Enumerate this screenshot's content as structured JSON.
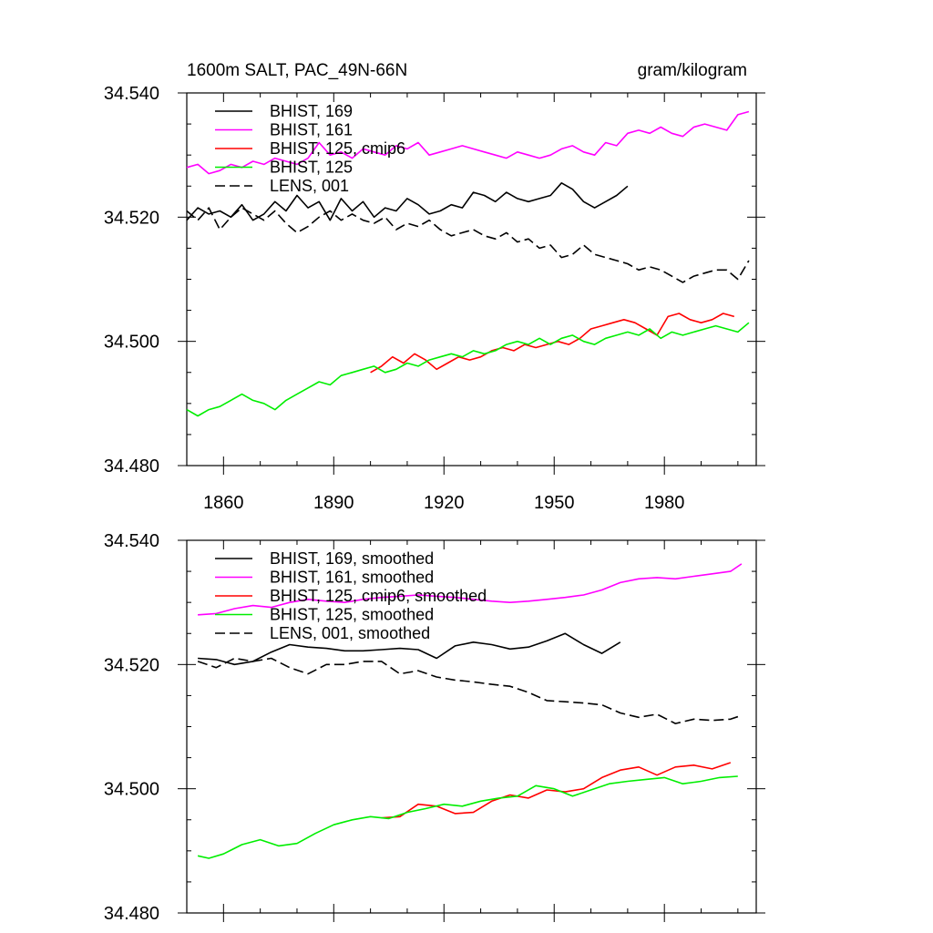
{
  "header": {
    "left_title": "1600m SALT, PAC_49N-66N",
    "right_units": "gram/kilogram"
  },
  "chart_data": [
    {
      "type": "line",
      "xlim": [
        1850,
        2005
      ],
      "ylim": [
        34.48,
        34.54
      ],
      "yticks": [
        "34.480",
        "34.500",
        "34.520",
        "34.540"
      ],
      "xticks": [
        "1860",
        "1890",
        "1920",
        "1950",
        "1980"
      ],
      "legend_position": "top-left",
      "series": [
        {
          "name": "BHIST, 169",
          "color": "#000000",
          "dash": "solid",
          "x": [
            1850,
            1853,
            1856,
            1859,
            1862,
            1865,
            1868,
            1871,
            1874,
            1877,
            1880,
            1883,
            1886,
            1889,
            1892,
            1895,
            1898,
            1901,
            1904,
            1907,
            1910,
            1913,
            1916,
            1919,
            1922,
            1925,
            1928,
            1931,
            1934,
            1937,
            1940,
            1943,
            1946,
            1949,
            1952,
            1955,
            1958,
            1961,
            1964,
            1967,
            1970
          ],
          "y": [
            34.5195,
            34.5215,
            34.5205,
            34.521,
            34.52,
            34.522,
            34.5195,
            34.5205,
            34.5225,
            34.521,
            34.5235,
            34.5215,
            34.5225,
            34.5195,
            34.523,
            34.521,
            34.5225,
            34.52,
            34.5215,
            34.521,
            34.523,
            34.522,
            34.5205,
            34.521,
            34.522,
            34.5215,
            34.524,
            34.5235,
            34.5225,
            34.524,
            34.523,
            34.5225,
            34.523,
            34.5235,
            34.5255,
            34.5245,
            34.5225,
            34.5215,
            34.5225,
            34.5235,
            34.525
          ]
        },
        {
          "name": "BHIST, 161",
          "color": "#ff00ff",
          "dash": "solid",
          "x": [
            1850,
            1853,
            1856,
            1859,
            1862,
            1865,
            1868,
            1871,
            1874,
            1877,
            1880,
            1883,
            1886,
            1889,
            1892,
            1895,
            1898,
            1901,
            1904,
            1907,
            1910,
            1913,
            1916,
            1919,
            1922,
            1925,
            1928,
            1931,
            1934,
            1937,
            1940,
            1943,
            1946,
            1949,
            1952,
            1955,
            1958,
            1961,
            1964,
            1967,
            1970,
            1973,
            1976,
            1979,
            1982,
            1985,
            1988,
            1991,
            1994,
            1997,
            2000,
            2003
          ],
          "y": [
            34.528,
            34.5285,
            34.527,
            34.5275,
            34.5285,
            34.528,
            34.529,
            34.5285,
            34.5295,
            34.529,
            34.5285,
            34.5295,
            34.532,
            34.53,
            34.5305,
            34.5295,
            34.531,
            34.5305,
            34.53,
            34.5315,
            34.531,
            34.532,
            34.53,
            34.5305,
            34.531,
            34.5315,
            34.531,
            34.5305,
            34.53,
            34.5295,
            34.5305,
            34.53,
            34.5295,
            34.53,
            34.531,
            34.5315,
            34.5305,
            34.53,
            34.532,
            34.5315,
            34.5335,
            34.534,
            34.5335,
            34.5345,
            34.5335,
            34.533,
            34.5345,
            34.535,
            34.5345,
            34.534,
            34.5365,
            34.537
          ]
        },
        {
          "name": "BHIST, 125, cmip6",
          "color": "#ff0000",
          "dash": "solid",
          "x": [
            1900,
            1903,
            1906,
            1909,
            1912,
            1915,
            1918,
            1921,
            1924,
            1927,
            1930,
            1933,
            1936,
            1939,
            1942,
            1945,
            1948,
            1951,
            1954,
            1957,
            1960,
            1963,
            1966,
            1969,
            1972,
            1975,
            1978,
            1981,
            1984,
            1987,
            1990,
            1993,
            1996,
            1999
          ],
          "y": [
            34.495,
            34.496,
            34.4975,
            34.4965,
            34.498,
            34.497,
            34.4955,
            34.4965,
            34.4975,
            34.497,
            34.4975,
            34.4985,
            34.499,
            34.4985,
            34.4995,
            34.499,
            34.4995,
            34.5,
            34.4995,
            34.5005,
            34.502,
            34.5025,
            34.503,
            34.5035,
            34.503,
            34.502,
            34.501,
            34.504,
            34.5045,
            34.5035,
            34.503,
            34.5035,
            34.5045,
            34.504
          ]
        },
        {
          "name": "BHIST, 125",
          "color": "#00ee00",
          "dash": "solid",
          "x": [
            1850,
            1853,
            1856,
            1859,
            1862,
            1865,
            1868,
            1871,
            1874,
            1877,
            1880,
            1883,
            1886,
            1889,
            1892,
            1895,
            1898,
            1901,
            1904,
            1907,
            1910,
            1913,
            1916,
            1919,
            1922,
            1925,
            1928,
            1931,
            1934,
            1937,
            1940,
            1943,
            1946,
            1949,
            1952,
            1955,
            1958,
            1961,
            1964,
            1967,
            1970,
            1973,
            1976,
            1979,
            1982,
            1985,
            1988,
            1991,
            1994,
            1997,
            2000,
            2003
          ],
          "y": [
            34.489,
            34.488,
            34.489,
            34.4895,
            34.4905,
            34.4915,
            34.4905,
            34.49,
            34.489,
            34.4905,
            34.4915,
            34.4925,
            34.4935,
            34.493,
            34.4945,
            34.495,
            34.4955,
            34.496,
            34.495,
            34.4955,
            34.4965,
            34.496,
            34.497,
            34.4975,
            34.498,
            34.4975,
            34.4985,
            34.498,
            34.4985,
            34.4995,
            34.5,
            34.4995,
            34.5005,
            34.4995,
            34.5005,
            34.501,
            34.5,
            34.4995,
            34.5005,
            34.501,
            34.5015,
            34.501,
            34.502,
            34.5005,
            34.5015,
            34.501,
            34.5015,
            34.502,
            34.5025,
            34.502,
            34.5015,
            34.503
          ]
        },
        {
          "name": "LENS, 001",
          "color": "#000000",
          "dash": "dashed",
          "x": [
            1850,
            1853,
            1856,
            1859,
            1862,
            1865,
            1868,
            1871,
            1874,
            1877,
            1880,
            1883,
            1886,
            1889,
            1892,
            1895,
            1898,
            1901,
            1904,
            1907,
            1910,
            1913,
            1916,
            1919,
            1922,
            1925,
            1928,
            1931,
            1934,
            1937,
            1940,
            1943,
            1946,
            1949,
            1952,
            1955,
            1958,
            1961,
            1964,
            1967,
            1970,
            1973,
            1976,
            1979,
            1982,
            1985,
            1988,
            1991,
            1994,
            1997,
            2000,
            2003
          ],
          "y": [
            34.521,
            34.5195,
            34.5215,
            34.518,
            34.52,
            34.5215,
            34.5205,
            34.5195,
            34.521,
            34.519,
            34.5175,
            34.5185,
            34.52,
            34.521,
            34.5195,
            34.5205,
            34.5195,
            34.519,
            34.52,
            34.518,
            34.519,
            34.5185,
            34.5195,
            34.518,
            34.517,
            34.5175,
            34.518,
            34.517,
            34.5165,
            34.5175,
            34.516,
            34.5165,
            34.515,
            34.5155,
            34.5135,
            34.514,
            34.5155,
            34.514,
            34.5135,
            34.513,
            34.5125,
            34.5115,
            34.512,
            34.5115,
            34.5105,
            34.5095,
            34.5105,
            34.511,
            34.5115,
            34.5115,
            34.51,
            34.513
          ]
        }
      ]
    },
    {
      "type": "line",
      "xlim": [
        1850,
        2005
      ],
      "ylim": [
        34.48,
        34.54
      ],
      "yticks": [
        "34.480",
        "34.500",
        "34.520",
        "34.540"
      ],
      "legend_position": "top-left",
      "series": [
        {
          "name": "BHIST, 169, smoothed",
          "color": "#000000",
          "dash": "solid",
          "x": [
            1853,
            1858,
            1863,
            1868,
            1873,
            1878,
            1883,
            1888,
            1893,
            1898,
            1903,
            1908,
            1913,
            1918,
            1923,
            1928,
            1933,
            1938,
            1943,
            1948,
            1953,
            1958,
            1963,
            1968
          ],
          "y": [
            34.521,
            34.5208,
            34.52,
            34.5205,
            34.522,
            34.5232,
            34.5228,
            34.5226,
            34.5222,
            34.5222,
            34.5224,
            34.5226,
            34.5224,
            34.521,
            34.523,
            34.5236,
            34.5232,
            34.5225,
            34.5228,
            34.5238,
            34.525,
            34.5232,
            34.5218,
            34.5236
          ]
        },
        {
          "name": "BHIST, 161, smoothed",
          "color": "#ff00ff",
          "dash": "solid",
          "x": [
            1853,
            1858,
            1863,
            1868,
            1873,
            1878,
            1883,
            1888,
            1893,
            1898,
            1903,
            1908,
            1913,
            1918,
            1923,
            1928,
            1933,
            1938,
            1943,
            1948,
            1953,
            1958,
            1963,
            1968,
            1973,
            1978,
            1983,
            1988,
            1993,
            1998,
            2001
          ],
          "y": [
            34.528,
            34.5282,
            34.529,
            34.5295,
            34.5292,
            34.53,
            34.5305,
            34.5302,
            34.53,
            34.5305,
            34.5308,
            34.531,
            34.5312,
            34.531,
            34.5308,
            34.5305,
            34.5302,
            34.53,
            34.5302,
            34.5305,
            34.5308,
            34.5312,
            34.532,
            34.5332,
            34.5338,
            34.534,
            34.5338,
            34.5342,
            34.5346,
            34.535,
            34.5362
          ]
        },
        {
          "name": "BHIST, 125, cmip6, smoothed",
          "color": "#ff0000",
          "dash": "solid",
          "x": [
            1903,
            1908,
            1913,
            1918,
            1923,
            1928,
            1933,
            1938,
            1943,
            1948,
            1953,
            1958,
            1963,
            1968,
            1973,
            1978,
            1983,
            1988,
            1993,
            1998
          ],
          "y": [
            34.4953,
            34.4955,
            34.4975,
            34.4972,
            34.496,
            34.4962,
            34.498,
            34.499,
            34.4985,
            34.4998,
            34.4995,
            34.5,
            34.5018,
            34.503,
            34.5035,
            34.5022,
            34.5035,
            34.5038,
            34.5032,
            34.5042
          ]
        },
        {
          "name": "BHIST, 125, smoothed",
          "color": "#00ee00",
          "dash": "solid",
          "x": [
            1853,
            1856,
            1860,
            1865,
            1870,
            1875,
            1880,
            1885,
            1890,
            1895,
            1900,
            1905,
            1910,
            1915,
            1920,
            1925,
            1930,
            1935,
            1940,
            1945,
            1950,
            1955,
            1960,
            1965,
            1970,
            1975,
            1980,
            1985,
            1990,
            1995,
            2000
          ],
          "y": [
            34.4892,
            34.4888,
            34.4895,
            34.491,
            34.4918,
            34.4908,
            34.4912,
            34.4928,
            34.4942,
            34.495,
            34.4955,
            34.4952,
            34.4962,
            34.4968,
            34.4975,
            34.4972,
            34.498,
            34.4985,
            34.4988,
            34.5005,
            34.5,
            34.4988,
            34.4998,
            34.5008,
            34.5012,
            34.5015,
            34.5018,
            34.5008,
            34.5012,
            34.5018,
            34.502
          ]
        },
        {
          "name": "LENS, 001, smoothed",
          "color": "#000000",
          "dash": "dashed",
          "x": [
            1853,
            1858,
            1863,
            1868,
            1873,
            1878,
            1883,
            1888,
            1893,
            1898,
            1903,
            1908,
            1913,
            1918,
            1923,
            1928,
            1933,
            1938,
            1943,
            1948,
            1953,
            1958,
            1963,
            1968,
            1973,
            1978,
            1983,
            1988,
            1993,
            1998,
            2001
          ],
          "y": [
            34.5205,
            34.5195,
            34.521,
            34.5205,
            34.521,
            34.5195,
            34.5185,
            34.52,
            34.52,
            34.5205,
            34.5205,
            34.5185,
            34.519,
            34.518,
            34.5175,
            34.5172,
            34.5168,
            34.5165,
            34.5155,
            34.5142,
            34.514,
            34.5138,
            34.5135,
            34.5122,
            34.5115,
            34.512,
            34.5105,
            34.5112,
            34.511,
            34.5112,
            34.5118
          ]
        }
      ]
    }
  ]
}
